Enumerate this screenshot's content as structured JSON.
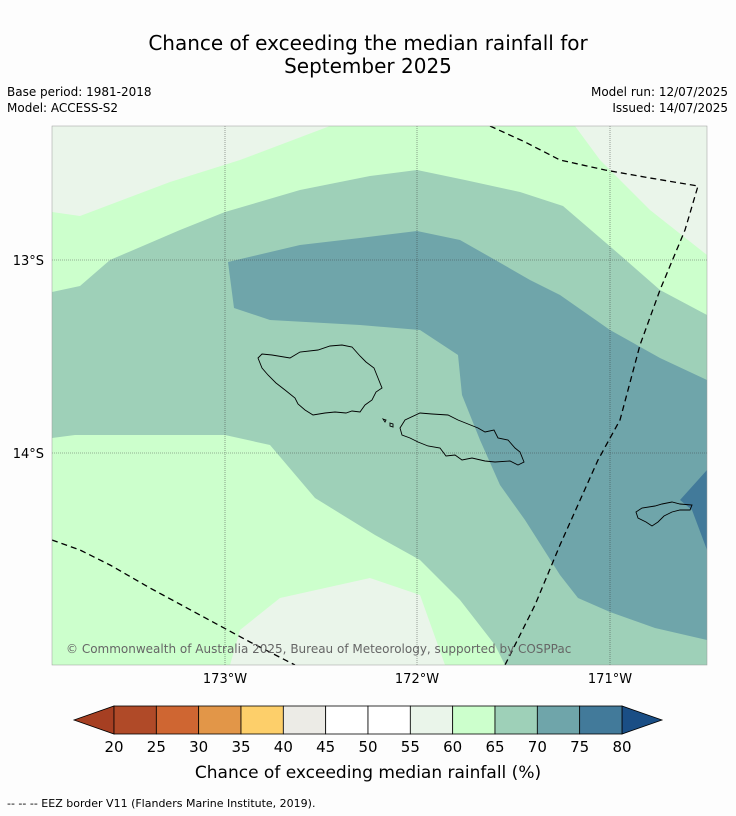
{
  "title_line1": "Chance of exceeding the median rainfall for",
  "title_line2": "September 2025",
  "base_period": "Base period: 1981-2018",
  "model": "Model: ACCESS-S2",
  "model_run": "Model run: 12/07/2025",
  "issued": "Issued: 14/07/2025",
  "lat_labels": [
    "13°S",
    "14°S"
  ],
  "lon_labels": [
    "173°W",
    "172°W",
    "171°W"
  ],
  "copyright": "© Commonwealth of Australia 2025, Bureau of Meteorology, supported by COSPPac",
  "colorbar": {
    "ticks": [
      "20",
      "25",
      "30",
      "35",
      "40",
      "45",
      "50",
      "55",
      "60",
      "65",
      "70",
      "75",
      "80"
    ],
    "colors": [
      "#a63f22",
      "#b04a28",
      "#cf6632",
      "#e29648",
      "#fdcf6a",
      "#ecebe6",
      "#ffffff",
      "#ffffff",
      "#eaf5ea",
      "#ccffcc",
      "#9ed0b8",
      "#6fa5aa",
      "#427a9a",
      "#1a4e85"
    ],
    "title": "Chance of exceeding median rainfall (%)"
  },
  "footer": "--  --  -- EEZ border V11 (Flanders Marine Institute, 2019)."
}
